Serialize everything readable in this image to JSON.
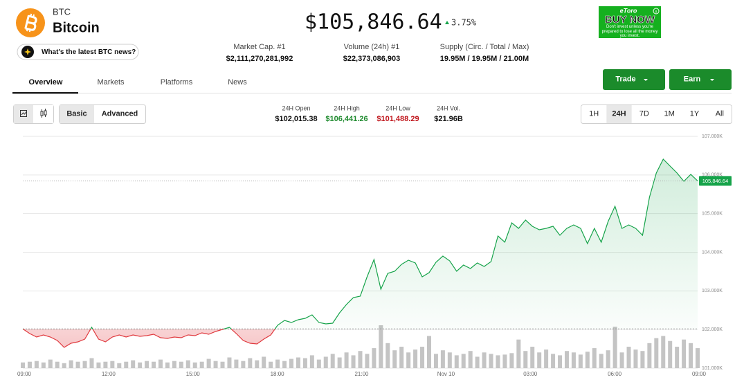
{
  "header": {
    "symbol": "BTC",
    "name": "Bitcoin",
    "news_button": "What's the latest BTC news?",
    "price": "$105,846.64",
    "change": "3.75%"
  },
  "ad": {
    "brand": "eToro",
    "cta": "BUY NOW",
    "disclaimer": "Don't invest unless you're prepared to lose all the money you invest."
  },
  "stats": [
    {
      "label": "Market Cap. #1",
      "value": "$2,111,270,281,992"
    },
    {
      "label": "Volume (24h) #1",
      "value": "$22,373,086,903"
    },
    {
      "label": "Supply (Circ. / Total / Max)",
      "value": "19.95M / 19.95M / 21.00M"
    }
  ],
  "tabs": {
    "items": [
      "Overview",
      "Markets",
      "Platforms",
      "News"
    ],
    "active": 0
  },
  "actions": [
    "Trade",
    "Earn"
  ],
  "toolbar": {
    "modes": [
      "Basic",
      "Advanced"
    ],
    "active_mode": 0,
    "ranges": [
      "1H",
      "24H",
      "7D",
      "1M",
      "1Y",
      "All"
    ],
    "active_range": 1
  },
  "day_stats": [
    {
      "label": "24H Open",
      "value": "$102,015.38",
      "color": "#111111"
    },
    {
      "label": "24H High",
      "value": "$106,441.26",
      "color": "#1e8a2e"
    },
    {
      "label": "24H Low",
      "value": "$101,488.29",
      "color": "#c0161c"
    },
    {
      "label": "24H Vol.",
      "value": "$21.96B",
      "color": "#111111"
    }
  ],
  "chart_data": {
    "type": "line",
    "xtick_labels": [
      "09:00",
      "12:00",
      "15:00",
      "18:00",
      "21:00",
      "Nov 10",
      "03:00",
      "06:00",
      "09:00"
    ],
    "ylim": [
      101000,
      107000
    ],
    "yticks": [
      {
        "value": 101000,
        "label": "101.000K"
      },
      {
        "value": 102000,
        "label": "102.000K"
      },
      {
        "value": 103000,
        "label": "103.000K"
      },
      {
        "value": 104000,
        "label": "104.000K"
      },
      {
        "value": 105000,
        "label": "105.000K"
      },
      {
        "value": 106000,
        "label": "106.000K"
      },
      {
        "value": 107000,
        "label": "107.000K"
      }
    ],
    "grid": true,
    "baseline": 102015.38,
    "last": {
      "value": 105846.64,
      "label": "105,846.64"
    },
    "up_color": "#16a34a",
    "down_color": "#e0393e",
    "volume_color": "#c4c4c4",
    "values": [
      102015.38,
      101896,
      101806,
      101860,
      101806,
      101717,
      101537,
      101645,
      101681,
      101752,
      102057,
      101752,
      101681,
      101806,
      101860,
      101806,
      101860,
      101824,
      101842,
      101878,
      101788,
      101770,
      101806,
      101788,
      101860,
      101842,
      101914,
      101878,
      101949,
      102003,
      102057,
      101896,
      101717,
      101645,
      101627,
      101752,
      101860,
      102111,
      102236,
      102182,
      102254,
      102290,
      102379,
      102182,
      102146,
      102164,
      102433,
      102648,
      102827,
      102863,
      103364,
      103812,
      103042,
      103454,
      103508,
      103687,
      103794,
      103722,
      103364,
      103472,
      103740,
      103902,
      103776,
      103508,
      103669,
      103579,
      103722,
      103633,
      103758,
      104421,
      104260,
      104761,
      104618,
      104833,
      104672,
      104582,
      104618,
      104672,
      104439,
      104618,
      104708,
      104618,
      104224,
      104618,
      104260,
      104797,
      105191,
      104618,
      104708,
      104618,
      104439,
      105424,
      106051,
      106409,
      106230,
      106051,
      105836,
      106015,
      105846.64
    ],
    "volume": [
      8,
      9,
      10,
      8,
      12,
      9,
      7,
      11,
      9,
      10,
      14,
      8,
      9,
      10,
      7,
      9,
      11,
      8,
      10,
      9,
      12,
      8,
      10,
      9,
      11,
      8,
      9,
      13,
      10,
      9,
      15,
      12,
      10,
      14,
      11,
      16,
      9,
      12,
      10,
      13,
      15,
      14,
      18,
      12,
      16,
      20,
      15,
      22,
      18,
      24,
      20,
      28,
      60,
      35,
      25,
      30,
      22,
      26,
      30,
      45,
      20,
      25,
      22,
      18,
      20,
      24,
      16,
      22,
      20,
      18,
      19,
      21,
      40,
      24,
      30,
      22,
      26,
      20,
      18,
      24,
      22,
      19,
      23,
      28,
      20,
      25,
      58,
      22,
      30,
      26,
      24,
      35,
      42,
      45,
      38,
      30,
      40,
      35,
      28
    ]
  }
}
